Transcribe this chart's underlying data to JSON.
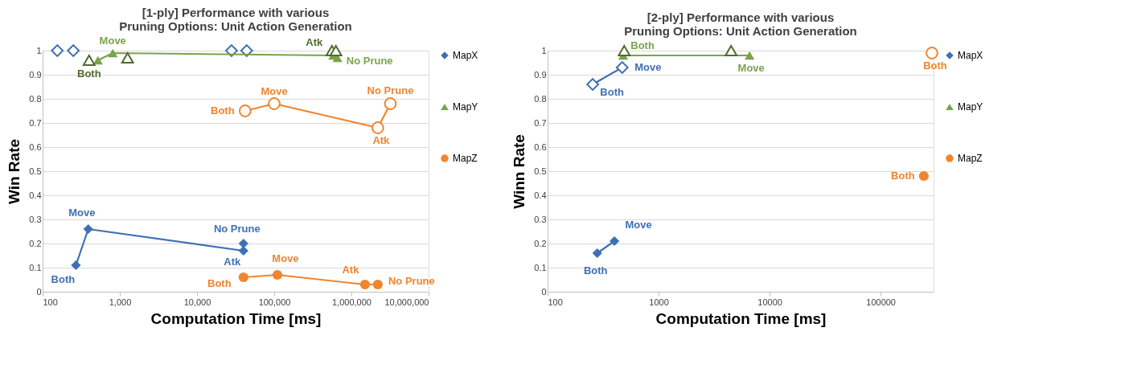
{
  "chart_data": [
    {
      "type": "scatter",
      "title": "[1-ply] Performance with various\nPruning Options: Unit Action Generation",
      "xlabel": "Computation Time [ms]",
      "ylabel": "Win Rate",
      "log": "x",
      "grid": "y",
      "legend": "right",
      "xlim": [
        100,
        10000000
      ],
      "xticks": [
        100,
        {
          "value": 1000,
          "label": "1,000"
        },
        {
          "value": 10000,
          "label": "10,000"
        },
        {
          "value": 100000,
          "label": "100,000"
        },
        {
          "value": 1000000,
          "label": "1,000,000"
        },
        {
          "value": 10000000,
          "label": "10,000,000"
        }
      ],
      "ylim": [
        0,
        1
      ],
      "yticks": [
        0,
        0.1,
        0.2,
        0.3,
        0.4,
        0.5,
        0.6,
        0.7,
        0.8,
        0.9,
        1
      ],
      "series": [
        {
          "name": "MapX",
          "type": "line",
          "marker": "diamond",
          "color": "#3f70b5",
          "x": [
            270,
            390,
            40000,
            40000
          ],
          "values": [
            0.11,
            0.26,
            0.17,
            0.2
          ]
        },
        {
          "marker": "diamond",
          "color": "#3f70b5",
          "x": [
            155,
            250,
            28000,
            44000
          ],
          "values": [
            1,
            1,
            1,
            1
          ]
        },
        {
          "name": "MapY",
          "type": "line",
          "marker": "triangle",
          "color": "#7aa34a",
          "x": [
            520,
            810,
            580000,
            660000
          ],
          "values": [
            0.96,
            0.99,
            0.98,
            0.97
          ]
        },
        {
          "marker": "triangle",
          "color": "#4f6a2e",
          "x": [
            400,
            1260,
            560000,
            630000
          ],
          "values": [
            0.96,
            0.97,
            1,
            1
          ]
        },
        {
          "name": "MapZ",
          "type": "line",
          "marker": "circle",
          "color": "#f0852d",
          "x": [
            40000,
            110000,
            1500000,
            2200000
          ],
          "values": [
            0.06,
            0.07,
            0.03,
            0.03
          ]
        },
        {
          "type": "line",
          "marker": "circle",
          "color": "#f0852d",
          "x": [
            42000,
            100000,
            2200000,
            3200000
          ],
          "values": [
            0.75,
            0.78,
            0.68,
            0.78
          ]
        }
      ],
      "annotations": [
        {
          "text": "Move",
          "x": 810,
          "y": 0.99
        },
        {
          "text": "Both",
          "x": 400,
          "y": 0.96
        },
        {
          "text": "Atk",
          "x": 560000,
          "y": 1
        },
        {
          "text": "No Prune",
          "x": 660000,
          "y": 0.97
        },
        {
          "text": "Move",
          "x": 100000,
          "y": 0.78
        },
        {
          "text": "Both",
          "x": 42000,
          "y": 0.75
        },
        {
          "text": "Atk",
          "x": 2200000,
          "y": 0.68
        },
        {
          "text": "No Prune",
          "x": 3200000,
          "y": 0.78
        },
        {
          "text": "Move",
          "x": 390,
          "y": 0.26
        },
        {
          "text": "Both",
          "x": 270,
          "y": 0.11
        },
        {
          "text": "No Prune",
          "x": 40000,
          "y": 0.2
        },
        {
          "text": "Atk",
          "x": 40000,
          "y": 0.17
        },
        {
          "text": "Move",
          "x": 110000,
          "y": 0.07
        },
        {
          "text": "Both",
          "x": 40000,
          "y": 0.06
        },
        {
          "text": "Atk",
          "x": 1500000,
          "y": 0.03
        },
        {
          "text": "No Prune",
          "x": 2200000,
          "y": 0.03
        }
      ]
    },
    {
      "type": "scatter",
      "title": "[2-ply] Performance with various\nPruning Options: Unit Action Generation",
      "xlabel": "Computation Time [ms]",
      "ylabel": "Winn Rate",
      "log": "x",
      "grid": "y",
      "legend": "right",
      "xlim": [
        100,
        300000
      ],
      "xticks": [
        100,
        1000,
        10000,
        100000
      ],
      "ylim": [
        0,
        1
      ],
      "yticks": [
        0,
        0.1,
        0.2,
        0.3,
        0.4,
        0.5,
        0.6,
        0.7,
        0.8,
        0.9,
        1
      ],
      "series": [
        {
          "name": "MapX",
          "type": "line",
          "marker": "diamond",
          "color": "#3f70b5",
          "x": [
            280,
            400
          ],
          "values": [
            0.16,
            0.21
          ]
        },
        {
          "type": "line",
          "marker": "diamond",
          "color": "#3f70b5",
          "x": [
            255,
            470
          ],
          "values": [
            0.86,
            0.93
          ]
        },
        {
          "name": "MapY",
          "type": "line",
          "marker": "triangle",
          "color": "#7aa34a",
          "x": [
            480,
            6600
          ],
          "values": [
            0.98,
            0.98
          ]
        },
        {
          "marker": "triangle",
          "color": "#4f6a2e",
          "x": [
            490,
            4500
          ],
          "values": [
            1,
            1
          ]
        },
        {
          "name": "MapZ",
          "marker": "circle",
          "color": "#f0852d",
          "x": [
            245000
          ],
          "values": [
            0.48
          ]
        },
        {
          "marker": "circle",
          "color": "#f0852d",
          "x": [
            290000
          ],
          "values": [
            0.99
          ]
        }
      ],
      "annotations": [
        {
          "text": "Both",
          "x": 480,
          "y": 0.98
        },
        {
          "text": "Move",
          "x": 6600,
          "y": 0.98
        },
        {
          "text": "Move",
          "x": 470,
          "y": 0.93
        },
        {
          "text": "Both",
          "x": 255,
          "y": 0.86
        },
        {
          "text": "Both",
          "x": 290000,
          "y": 0.99
        },
        {
          "text": "Both",
          "x": 245000,
          "y": 0.48
        },
        {
          "text": "Move",
          "x": 400,
          "y": 0.21
        },
        {
          "text": "Both",
          "x": 280,
          "y": 0.16
        }
      ]
    }
  ]
}
